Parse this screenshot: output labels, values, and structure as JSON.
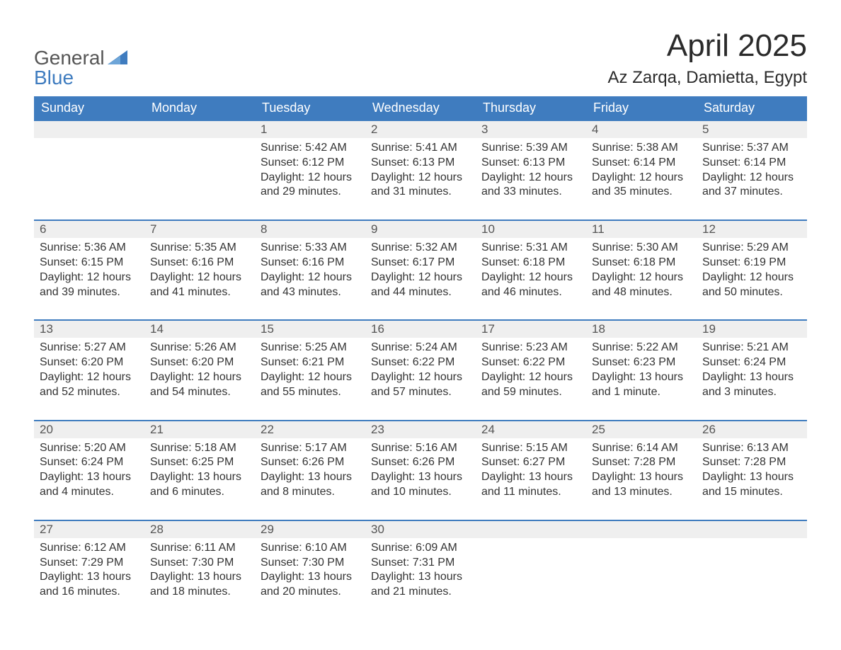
{
  "brand": {
    "line1": "General",
    "line2": "Blue",
    "flag_color": "#3f7cbf"
  },
  "title": "April 2025",
  "location": "Az Zarqa, Damietta, Egypt",
  "colors": {
    "header_bg": "#3f7cbf",
    "header_text": "#ffffff",
    "daynum_bg": "#efefef",
    "daynum_border": "#3f7cbf",
    "text": "#333333",
    "page_bg": "#ffffff"
  },
  "days_of_week": [
    "Sunday",
    "Monday",
    "Tuesday",
    "Wednesday",
    "Thursday",
    "Friday",
    "Saturday"
  ],
  "weeks": [
    [
      null,
      null,
      {
        "n": "1",
        "sunrise": "Sunrise: 5:42 AM",
        "sunset": "Sunset: 6:12 PM",
        "daylight1": "Daylight: 12 hours",
        "daylight2": "and 29 minutes."
      },
      {
        "n": "2",
        "sunrise": "Sunrise: 5:41 AM",
        "sunset": "Sunset: 6:13 PM",
        "daylight1": "Daylight: 12 hours",
        "daylight2": "and 31 minutes."
      },
      {
        "n": "3",
        "sunrise": "Sunrise: 5:39 AM",
        "sunset": "Sunset: 6:13 PM",
        "daylight1": "Daylight: 12 hours",
        "daylight2": "and 33 minutes."
      },
      {
        "n": "4",
        "sunrise": "Sunrise: 5:38 AM",
        "sunset": "Sunset: 6:14 PM",
        "daylight1": "Daylight: 12 hours",
        "daylight2": "and 35 minutes."
      },
      {
        "n": "5",
        "sunrise": "Sunrise: 5:37 AM",
        "sunset": "Sunset: 6:14 PM",
        "daylight1": "Daylight: 12 hours",
        "daylight2": "and 37 minutes."
      }
    ],
    [
      {
        "n": "6",
        "sunrise": "Sunrise: 5:36 AM",
        "sunset": "Sunset: 6:15 PM",
        "daylight1": "Daylight: 12 hours",
        "daylight2": "and 39 minutes."
      },
      {
        "n": "7",
        "sunrise": "Sunrise: 5:35 AM",
        "sunset": "Sunset: 6:16 PM",
        "daylight1": "Daylight: 12 hours",
        "daylight2": "and 41 minutes."
      },
      {
        "n": "8",
        "sunrise": "Sunrise: 5:33 AM",
        "sunset": "Sunset: 6:16 PM",
        "daylight1": "Daylight: 12 hours",
        "daylight2": "and 43 minutes."
      },
      {
        "n": "9",
        "sunrise": "Sunrise: 5:32 AM",
        "sunset": "Sunset: 6:17 PM",
        "daylight1": "Daylight: 12 hours",
        "daylight2": "and 44 minutes."
      },
      {
        "n": "10",
        "sunrise": "Sunrise: 5:31 AM",
        "sunset": "Sunset: 6:18 PM",
        "daylight1": "Daylight: 12 hours",
        "daylight2": "and 46 minutes."
      },
      {
        "n": "11",
        "sunrise": "Sunrise: 5:30 AM",
        "sunset": "Sunset: 6:18 PM",
        "daylight1": "Daylight: 12 hours",
        "daylight2": "and 48 minutes."
      },
      {
        "n": "12",
        "sunrise": "Sunrise: 5:29 AM",
        "sunset": "Sunset: 6:19 PM",
        "daylight1": "Daylight: 12 hours",
        "daylight2": "and 50 minutes."
      }
    ],
    [
      {
        "n": "13",
        "sunrise": "Sunrise: 5:27 AM",
        "sunset": "Sunset: 6:20 PM",
        "daylight1": "Daylight: 12 hours",
        "daylight2": "and 52 minutes."
      },
      {
        "n": "14",
        "sunrise": "Sunrise: 5:26 AM",
        "sunset": "Sunset: 6:20 PM",
        "daylight1": "Daylight: 12 hours",
        "daylight2": "and 54 minutes."
      },
      {
        "n": "15",
        "sunrise": "Sunrise: 5:25 AM",
        "sunset": "Sunset: 6:21 PM",
        "daylight1": "Daylight: 12 hours",
        "daylight2": "and 55 minutes."
      },
      {
        "n": "16",
        "sunrise": "Sunrise: 5:24 AM",
        "sunset": "Sunset: 6:22 PM",
        "daylight1": "Daylight: 12 hours",
        "daylight2": "and 57 minutes."
      },
      {
        "n": "17",
        "sunrise": "Sunrise: 5:23 AM",
        "sunset": "Sunset: 6:22 PM",
        "daylight1": "Daylight: 12 hours",
        "daylight2": "and 59 minutes."
      },
      {
        "n": "18",
        "sunrise": "Sunrise: 5:22 AM",
        "sunset": "Sunset: 6:23 PM",
        "daylight1": "Daylight: 13 hours",
        "daylight2": "and 1 minute."
      },
      {
        "n": "19",
        "sunrise": "Sunrise: 5:21 AM",
        "sunset": "Sunset: 6:24 PM",
        "daylight1": "Daylight: 13 hours",
        "daylight2": "and 3 minutes."
      }
    ],
    [
      {
        "n": "20",
        "sunrise": "Sunrise: 5:20 AM",
        "sunset": "Sunset: 6:24 PM",
        "daylight1": "Daylight: 13 hours",
        "daylight2": "and 4 minutes."
      },
      {
        "n": "21",
        "sunrise": "Sunrise: 5:18 AM",
        "sunset": "Sunset: 6:25 PM",
        "daylight1": "Daylight: 13 hours",
        "daylight2": "and 6 minutes."
      },
      {
        "n": "22",
        "sunrise": "Sunrise: 5:17 AM",
        "sunset": "Sunset: 6:26 PM",
        "daylight1": "Daylight: 13 hours",
        "daylight2": "and 8 minutes."
      },
      {
        "n": "23",
        "sunrise": "Sunrise: 5:16 AM",
        "sunset": "Sunset: 6:26 PM",
        "daylight1": "Daylight: 13 hours",
        "daylight2": "and 10 minutes."
      },
      {
        "n": "24",
        "sunrise": "Sunrise: 5:15 AM",
        "sunset": "Sunset: 6:27 PM",
        "daylight1": "Daylight: 13 hours",
        "daylight2": "and 11 minutes."
      },
      {
        "n": "25",
        "sunrise": "Sunrise: 6:14 AM",
        "sunset": "Sunset: 7:28 PM",
        "daylight1": "Daylight: 13 hours",
        "daylight2": "and 13 minutes."
      },
      {
        "n": "26",
        "sunrise": "Sunrise: 6:13 AM",
        "sunset": "Sunset: 7:28 PM",
        "daylight1": "Daylight: 13 hours",
        "daylight2": "and 15 minutes."
      }
    ],
    [
      {
        "n": "27",
        "sunrise": "Sunrise: 6:12 AM",
        "sunset": "Sunset: 7:29 PM",
        "daylight1": "Daylight: 13 hours",
        "daylight2": "and 16 minutes."
      },
      {
        "n": "28",
        "sunrise": "Sunrise: 6:11 AM",
        "sunset": "Sunset: 7:30 PM",
        "daylight1": "Daylight: 13 hours",
        "daylight2": "and 18 minutes."
      },
      {
        "n": "29",
        "sunrise": "Sunrise: 6:10 AM",
        "sunset": "Sunset: 7:30 PM",
        "daylight1": "Daylight: 13 hours",
        "daylight2": "and 20 minutes."
      },
      {
        "n": "30",
        "sunrise": "Sunrise: 6:09 AM",
        "sunset": "Sunset: 7:31 PM",
        "daylight1": "Daylight: 13 hours",
        "daylight2": "and 21 minutes."
      },
      null,
      null,
      null
    ]
  ]
}
